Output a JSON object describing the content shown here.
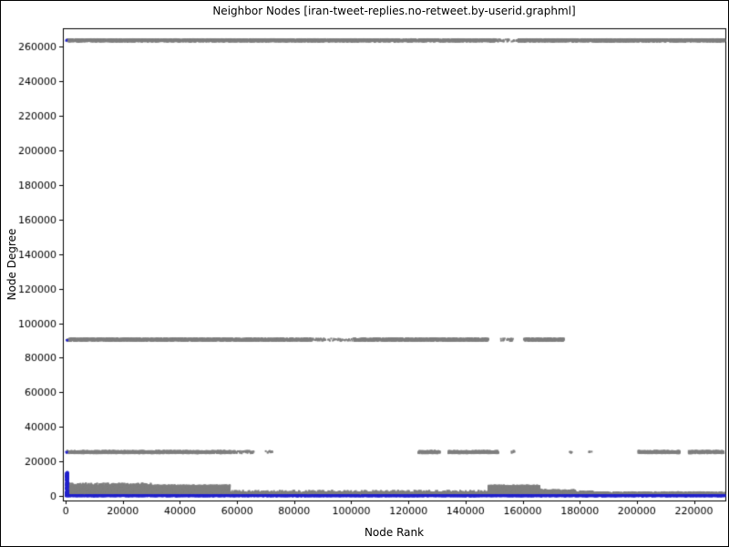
{
  "chart_data": {
    "type": "scatter",
    "title": "Neighbor Nodes [iran-tweet-replies.no-retweet.by-userid.graphml]",
    "xlabel": "Node Rank",
    "ylabel": "Node Degree",
    "xlim": [
      -1000,
      231000
    ],
    "ylim": [
      -2500,
      270500
    ],
    "xticks": [
      0,
      20000,
      40000,
      60000,
      80000,
      100000,
      120000,
      140000,
      160000,
      180000,
      200000,
      220000
    ],
    "yticks": [
      0,
      20000,
      40000,
      60000,
      80000,
      100000,
      120000,
      140000,
      160000,
      180000,
      200000,
      220000,
      240000,
      260000
    ],
    "grid": false,
    "legend": null,
    "colors": {
      "axis": "#000000",
      "background": "#ffffff",
      "gray_points": "#7f7f7f",
      "blue_points": "#2121cc"
    },
    "series": [
      {
        "name": "neighbor-node-degree-gray",
        "type": "scatter",
        "color_key": "gray_points",
        "marker_px": 2,
        "regions": [
          {
            "x0": 500,
            "x1": 150500,
            "y0": 262800,
            "y1": 264200,
            "n": 4000
          },
          {
            "x0": 150500,
            "x1": 158500,
            "y0": 262800,
            "y1": 264200,
            "n": 40
          },
          {
            "x0": 158500,
            "x1": 230800,
            "y0": 262800,
            "y1": 264200,
            "n": 2300
          },
          {
            "x0": 500,
            "x1": 86000,
            "y0": 89800,
            "y1": 91200,
            "n": 2400
          },
          {
            "x0": 86000,
            "x1": 101000,
            "y0": 89800,
            "y1": 91200,
            "n": 60
          },
          {
            "x0": 101000,
            "x1": 148000,
            "y0": 89800,
            "y1": 91200,
            "n": 1400
          },
          {
            "x0": 152000,
            "x1": 157000,
            "y0": 89800,
            "y1": 91200,
            "n": 25
          },
          {
            "x0": 160500,
            "x1": 174500,
            "y0": 89800,
            "y1": 91200,
            "n": 420
          },
          {
            "x0": 500,
            "x1": 57500,
            "y0": 24800,
            "y1": 26200,
            "n": 1500
          },
          {
            "x0": 57500,
            "x1": 66000,
            "y0": 24800,
            "y1": 26200,
            "n": 60
          },
          {
            "x0": 70000,
            "x1": 72500,
            "y0": 24800,
            "y1": 26200,
            "n": 10
          },
          {
            "x0": 123500,
            "x1": 131000,
            "y0": 24800,
            "y1": 26200,
            "n": 200
          },
          {
            "x0": 134000,
            "x1": 151500,
            "y0": 24800,
            "y1": 26200,
            "n": 450
          },
          {
            "x0": 156000,
            "x1": 157200,
            "y0": 24800,
            "y1": 26200,
            "n": 6
          },
          {
            "x0": 176500,
            "x1": 177800,
            "y0": 24800,
            "y1": 26200,
            "n": 5
          },
          {
            "x0": 183000,
            "x1": 184200,
            "y0": 24800,
            "y1": 26200,
            "n": 5
          },
          {
            "x0": 200500,
            "x1": 215000,
            "y0": 24800,
            "y1": 26200,
            "n": 380
          },
          {
            "x0": 218000,
            "x1": 230500,
            "y0": 24800,
            "y1": 26200,
            "n": 330
          },
          {
            "x0": 500,
            "x1": 57500,
            "y0": 600,
            "y1": 6200,
            "n": 6000
          },
          {
            "x0": 500,
            "x1": 30000,
            "y0": 6200,
            "y1": 7400,
            "n": 150
          },
          {
            "x0": 57500,
            "x1": 230800,
            "y0": 700,
            "y1": 2300,
            "n": 3500
          },
          {
            "x0": 57500,
            "x1": 148000,
            "y0": 2300,
            "y1": 3200,
            "n": 200
          },
          {
            "x0": 148000,
            "x1": 166000,
            "y0": 700,
            "y1": 6200,
            "n": 1800
          },
          {
            "x0": 166000,
            "x1": 178500,
            "y0": 700,
            "y1": 3600,
            "n": 500
          },
          {
            "x0": 180000,
            "x1": 185000,
            "y0": 700,
            "y1": 2800,
            "n": 120
          }
        ]
      },
      {
        "name": "node-degree-baseline-blue",
        "type": "scatter",
        "color_key": "blue_points",
        "marker_px": 2,
        "regions": [
          {
            "x0": 0,
            "x1": 230800,
            "y0": 0,
            "y1": 450,
            "n": 8000
          },
          {
            "x0": 0,
            "x1": 900,
            "y0": 0,
            "y1": 14000,
            "n": 250
          },
          {
            "x0": 100,
            "x1": 600,
            "y0": 263300,
            "y1": 264000,
            "n": 3
          },
          {
            "x0": 100,
            "x1": 600,
            "y0": 90000,
            "y1": 90800,
            "n": 3
          },
          {
            "x0": 100,
            "x1": 600,
            "y0": 25000,
            "y1": 25700,
            "n": 3
          }
        ]
      }
    ]
  }
}
